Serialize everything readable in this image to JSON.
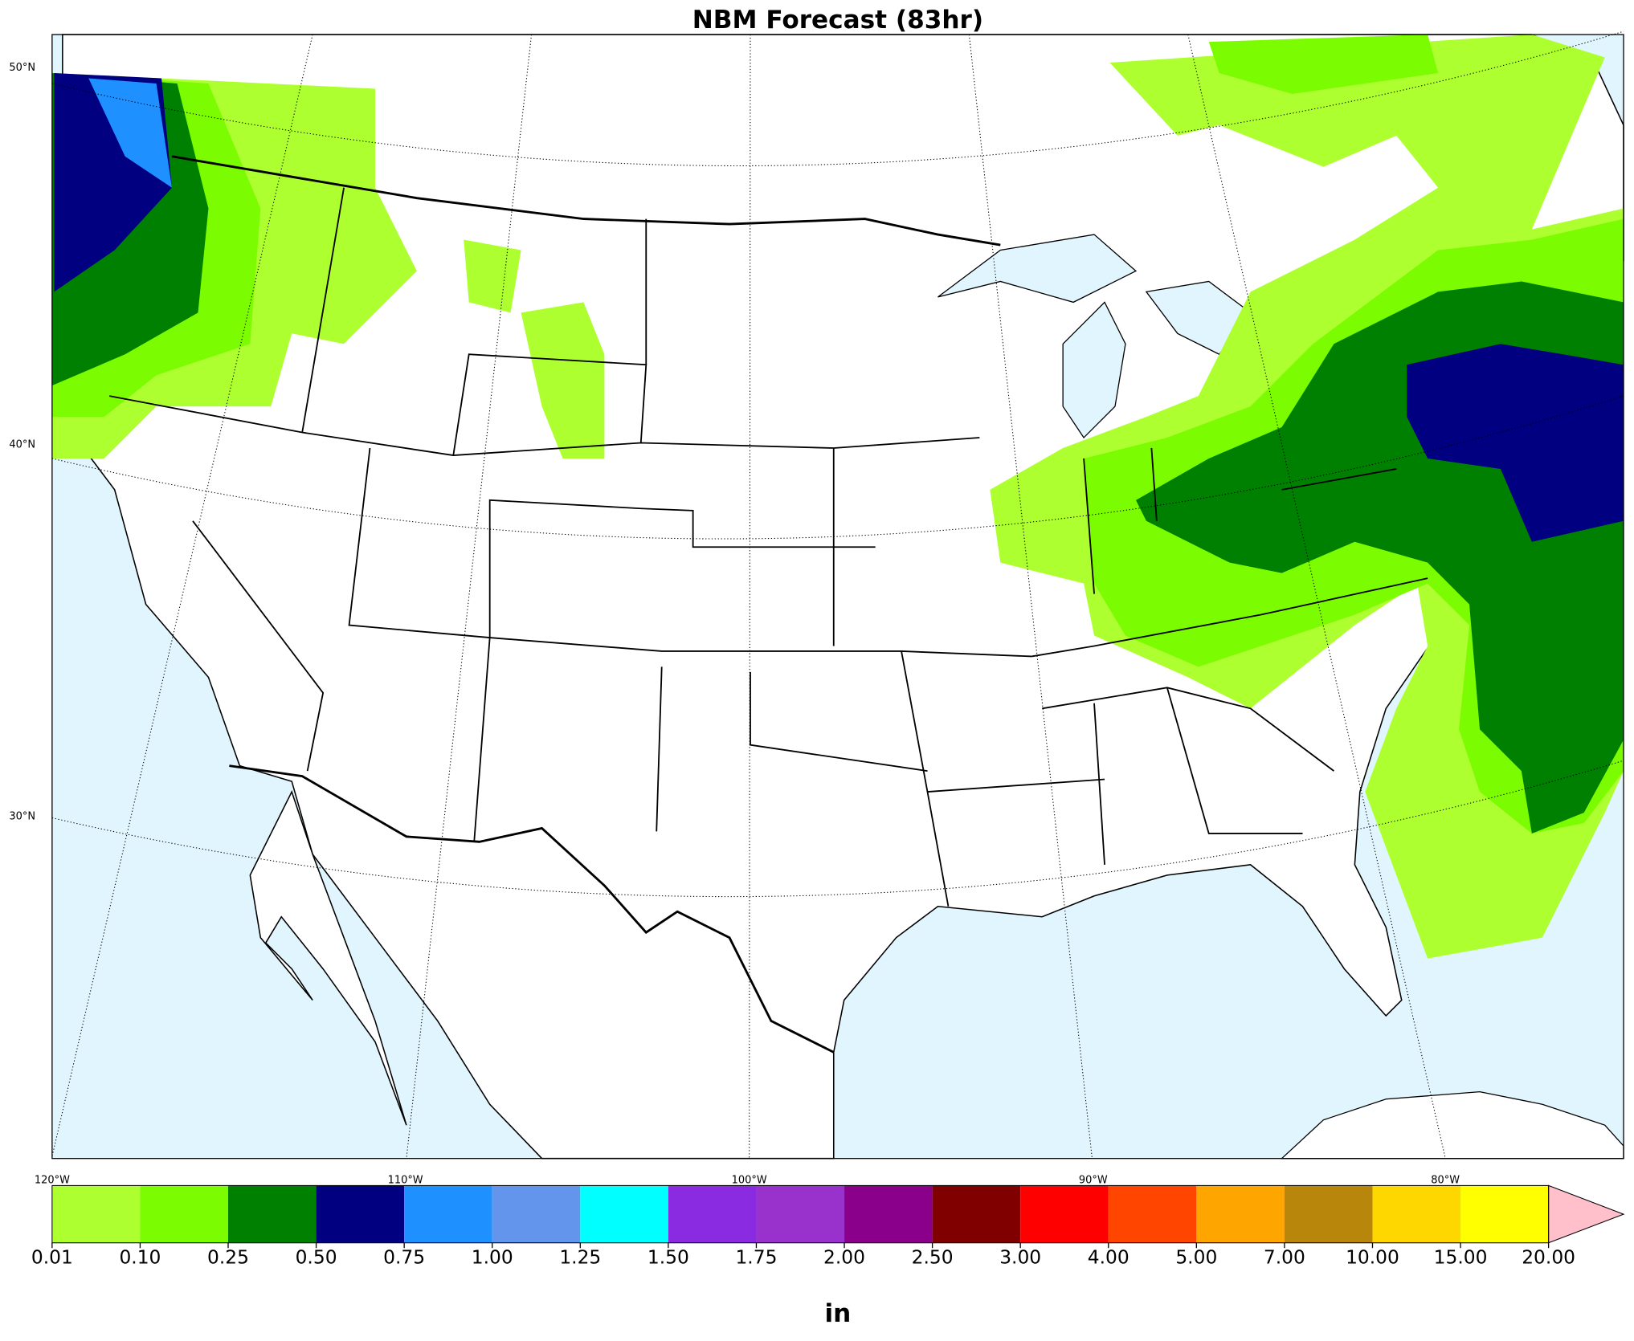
{
  "title": "NBM Forecast (83hr)",
  "lat_labels": [
    "50°N",
    "40°N",
    "30°N"
  ],
  "lon_labels": [
    "120°W",
    "110°W",
    "100°W",
    "90°W",
    "80°W"
  ],
  "colorbar": {
    "ticks": [
      {
        "value": 0.01,
        "label": "0.01"
      },
      {
        "value": 0.1,
        "label": "0.10"
      },
      {
        "value": 0.25,
        "label": "0.25"
      },
      {
        "value": 0.5,
        "label": "0.50"
      },
      {
        "value": 0.75,
        "label": "0.75"
      },
      {
        "value": 1,
        "label": "1.00"
      },
      {
        "value": 1.25,
        "label": "1.25"
      },
      {
        "value": 1.5,
        "label": "1.50"
      },
      {
        "value": 1.75,
        "label": "1.75"
      },
      {
        "value": 2,
        "label": "2.00"
      },
      {
        "value": 2.5,
        "label": "2.50"
      },
      {
        "value": 3,
        "label": "3.00"
      },
      {
        "value": 4,
        "label": "4.00"
      },
      {
        "value": 5,
        "label": "5.00"
      },
      {
        "value": 7,
        "label": "7.00"
      },
      {
        "value": 10,
        "label": "10.00"
      },
      {
        "value": 15,
        "label": "15.00"
      },
      {
        "value": 20,
        "label": "20.00"
      }
    ],
    "colors": [
      "#adff2f",
      "#7cfc00",
      "#008000",
      "#000080",
      "#1e90ff",
      "#6495ed",
      "#00ffff",
      "#8a2be2",
      "#9932cc",
      "#8b008b",
      "#800000",
      "#ff0000",
      "#ff4500",
      "#ffa500",
      "#b8860b",
      "#ffd700",
      "#ffff00"
    ],
    "extend_color": "#ffc0cb",
    "unit": "in"
  }
}
